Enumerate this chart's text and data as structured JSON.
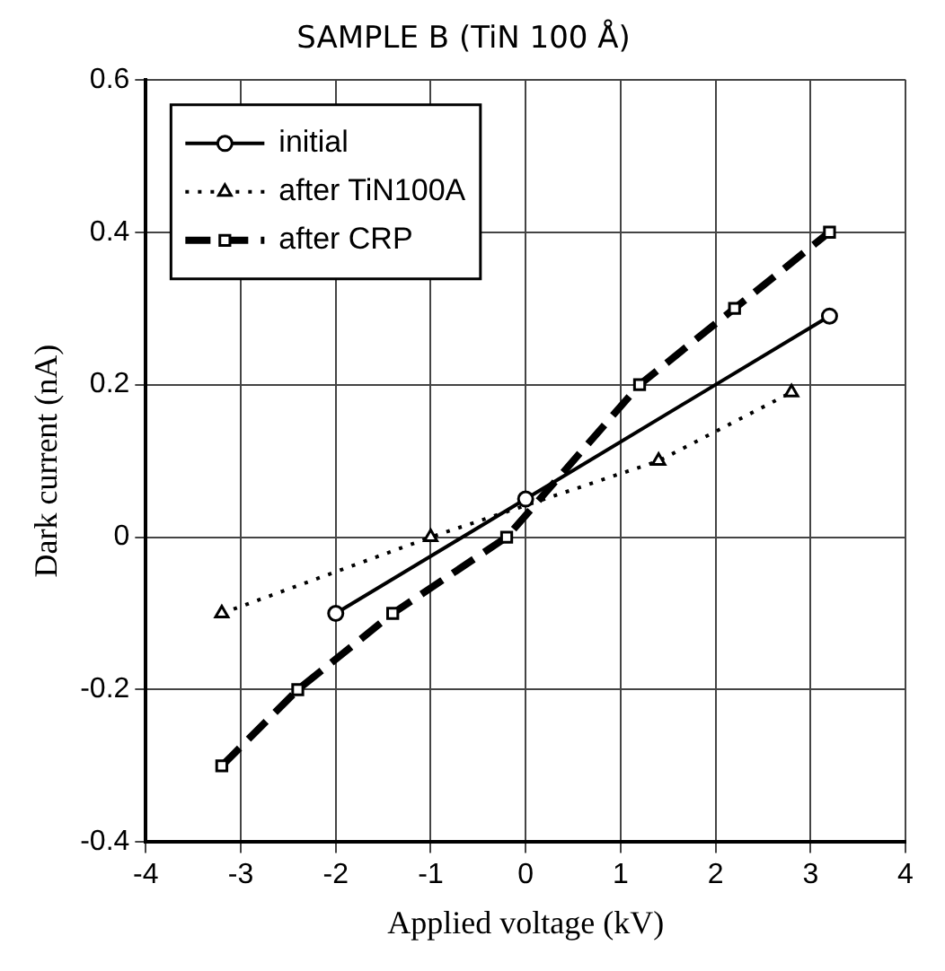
{
  "chart_data": {
    "type": "line",
    "title": "SAMPLE B (TiN 100 Å)",
    "xlabel": "Applied voltage (kV)",
    "ylabel": "Dark current (nA)",
    "xlim": [
      -4,
      4
    ],
    "xticks": [
      -4,
      -3,
      -2,
      -1,
      0,
      1,
      2,
      3,
      4
    ],
    "ylim": [
      -0.4,
      0.6
    ],
    "yticks": [
      -0.4,
      -0.2,
      0,
      0.2,
      0.4,
      0.6
    ],
    "grid": true,
    "legend": "top left",
    "series": [
      {
        "name": "initial",
        "color": "#000000",
        "marker": "circle",
        "line_style": "solid",
        "x": [
          -2,
          0,
          3.2
        ],
        "values": [
          -0.1,
          0.05,
          0.29
        ]
      },
      {
        "name": "after TiN100A",
        "color": "#000000",
        "marker": "triangle",
        "line_style": "dotted",
        "x": [
          -3.2,
          -1,
          1.4,
          2.8
        ],
        "values": [
          -0.1,
          0,
          0.1,
          0.19
        ]
      },
      {
        "name": "after CRP",
        "color": "#000000",
        "marker": "square",
        "line_style": "dashed",
        "x": [
          -3.2,
          -2.4,
          -1.4,
          -0.2,
          1.2,
          2.2,
          3.2
        ],
        "values": [
          -0.3,
          -0.2,
          -0.1,
          0,
          0.2,
          0.3,
          0.4
        ]
      }
    ]
  }
}
